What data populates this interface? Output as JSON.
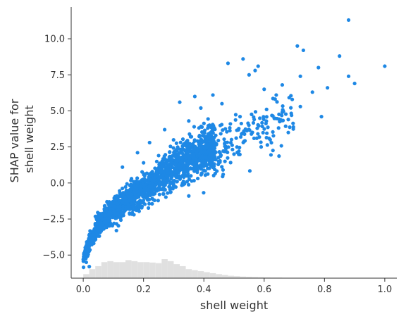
{
  "chart_data": {
    "type": "scatter",
    "title": "",
    "xlabel": "shell weight",
    "ylabel_lines": [
      "SHAP value for",
      "shell weight"
    ],
    "xlim": [
      -0.04,
      1.04
    ],
    "ylim": [
      -6.6,
      12.2
    ],
    "x_ticks": [
      0.0,
      0.2,
      0.4,
      0.6,
      0.8,
      1.0
    ],
    "x_tick_labels": [
      "0.0",
      "0.2",
      "0.4",
      "0.6",
      "0.8",
      "1.0"
    ],
    "y_ticks": [
      -5.0,
      -2.5,
      0.0,
      2.5,
      5.0,
      7.5,
      10.0
    ],
    "y_tick_labels": [
      "−5.0",
      "−2.5",
      "0.0",
      "2.5",
      "5.0",
      "7.5",
      "10.0"
    ],
    "grid": false,
    "point_color": "#1e88e5",
    "histogram_color": "#e0e0e0",
    "scatter_trend": {
      "x": [
        0.0,
        0.02,
        0.05,
        0.08,
        0.12,
        0.16,
        0.2,
        0.25,
        0.3,
        0.35,
        0.4,
        0.45,
        0.5,
        0.55,
        0.6,
        0.65,
        0.7
      ],
      "y": [
        -5.3,
        -4.2,
        -2.9,
        -2.2,
        -1.6,
        -1.0,
        -0.4,
        0.3,
        1.1,
        1.7,
        2.1,
        2.5,
        2.9,
        3.4,
        3.9,
        4.3,
        4.7
      ]
    },
    "outlier_points": [
      {
        "x": 0.88,
        "y": 11.3
      },
      {
        "x": 0.71,
        "y": 9.5
      },
      {
        "x": 0.73,
        "y": 9.2
      },
      {
        "x": 0.85,
        "y": 8.8
      },
      {
        "x": 1.0,
        "y": 8.1
      },
      {
        "x": 0.78,
        "y": 8.0
      },
      {
        "x": 0.53,
        "y": 8.6
      },
      {
        "x": 0.48,
        "y": 8.3
      },
      {
        "x": 0.58,
        "y": 8.1
      },
      {
        "x": 0.57,
        "y": 7.8
      },
      {
        "x": 0.55,
        "y": 7.5
      },
      {
        "x": 0.88,
        "y": 7.4
      },
      {
        "x": 0.9,
        "y": 6.9
      },
      {
        "x": 0.72,
        "y": 7.4
      },
      {
        "x": 0.81,
        "y": 6.6
      },
      {
        "x": 0.76,
        "y": 6.3
      },
      {
        "x": 0.72,
        "y": 5.3
      },
      {
        "x": 0.79,
        "y": 4.6
      },
      {
        "x": 0.66,
        "y": 6.8
      },
      {
        "x": 0.64,
        "y": 6.1
      },
      {
        "x": 0.6,
        "y": 6.5
      },
      {
        "x": 0.66,
        "y": 4.9
      },
      {
        "x": 0.68,
        "y": 4.4
      },
      {
        "x": 0.68,
        "y": 3.5
      },
      {
        "x": 0.62,
        "y": 3.0
      },
      {
        "x": 0.59,
        "y": 2.5
      },
      {
        "x": 0.37,
        "y": 6.0
      },
      {
        "x": 0.32,
        "y": 5.6
      },
      {
        "x": 0.43,
        "y": 6.1
      },
      {
        "x": 0.46,
        "y": 5.5
      },
      {
        "x": 0.39,
        "y": 5.2
      },
      {
        "x": 0.27,
        "y": 3.7
      },
      {
        "x": 0.35,
        "y": 4.3
      },
      {
        "x": 0.22,
        "y": 2.8
      },
      {
        "x": 0.18,
        "y": 2.1
      },
      {
        "x": 0.25,
        "y": 1.9
      },
      {
        "x": 0.13,
        "y": 1.1
      },
      {
        "x": 0.2,
        "y": 1.4
      },
      {
        "x": 0.16,
        "y": 0.3
      },
      {
        "x": 0.35,
        "y": -0.9
      },
      {
        "x": 0.3,
        "y": -0.2
      },
      {
        "x": 0.02,
        "y": -5.8
      },
      {
        "x": 0.01,
        "y": -5.5
      },
      {
        "x": 0.03,
        "y": -3.6
      },
      {
        "x": 0.07,
        "y": -1.8
      },
      {
        "x": 0.11,
        "y": -3.3
      },
      {
        "x": 0.42,
        "y": 3.3
      },
      {
        "x": 0.5,
        "y": 2.0
      },
      {
        "x": 0.47,
        "y": 1.5
      },
      {
        "x": 0.52,
        "y": 4.6
      }
    ],
    "histogram": {
      "bin_edges": [
        0.0,
        0.02,
        0.04,
        0.06,
        0.08,
        0.1,
        0.12,
        0.14,
        0.16,
        0.18,
        0.2,
        0.22,
        0.24,
        0.26,
        0.28,
        0.3,
        0.32,
        0.34,
        0.36,
        0.38,
        0.4,
        0.42,
        0.44,
        0.46,
        0.48,
        0.5,
        0.52,
        0.54,
        0.56,
        0.58,
        0.6,
        0.62,
        0.64,
        0.66,
        0.68,
        0.7,
        0.72,
        0.74,
        0.76,
        0.78,
        0.8
      ],
      "counts": [
        20,
        45,
        60,
        80,
        85,
        80,
        80,
        90,
        85,
        80,
        80,
        78,
        75,
        95,
        85,
        70,
        60,
        45,
        40,
        35,
        30,
        25,
        20,
        16,
        12,
        10,
        8,
        7,
        6,
        5,
        4,
        3,
        3,
        2,
        2,
        2,
        1,
        1,
        1,
        1
      ]
    }
  }
}
